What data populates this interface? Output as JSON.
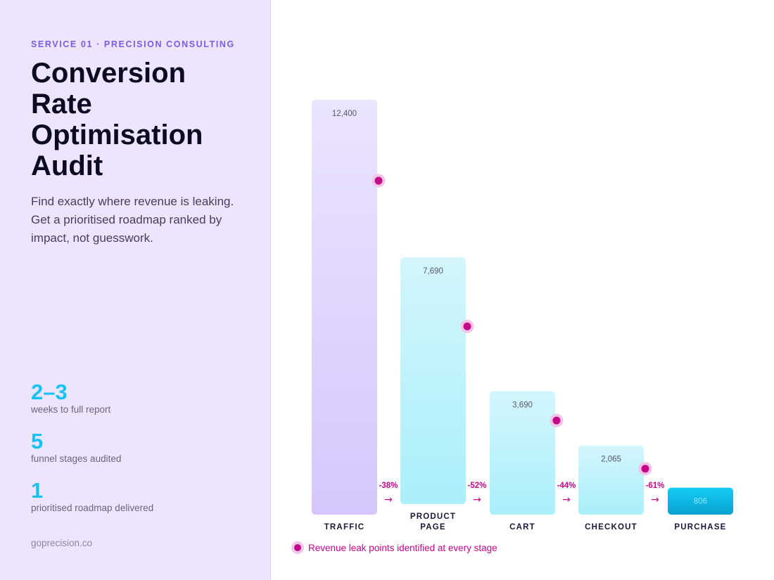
{
  "sidebar": {
    "eyebrow": "SERVICE 01 · PRECISION CONSULTING",
    "headline": [
      "Conversion",
      "Rate",
      "Optimisation",
      "Audit"
    ],
    "lede": "Find exactly where revenue is leaking. Get a prioritised roadmap ranked by impact, not guesswork.",
    "stats": [
      {
        "value": "2–3",
        "label": "weeks to full report"
      },
      {
        "value": "5",
        "label": "funnel stages audited"
      },
      {
        "value": "1",
        "label": "prioritised roadmap delivered"
      }
    ],
    "footer": "goprecision.co"
  },
  "legend": {
    "text": "Revenue leak points identified at every stage"
  },
  "colors": {
    "accent_purple": "#7b5ce6",
    "stat_cyan": "#18c3f2",
    "leak_magenta": "#c3068a",
    "bar_lavender": "#d8cbfd",
    "bar_cyan_light": "#b2f1fb",
    "bar_cyan_dark": "#0aa3d3"
  },
  "chart_data": {
    "type": "bar",
    "categories": [
      [
        "TRAFFIC"
      ],
      [
        "PRODUCT",
        "PAGE"
      ],
      [
        "CART"
      ],
      [
        "CHECKOUT"
      ],
      [
        "PURCHASE"
      ]
    ],
    "values": [
      12400,
      7690,
      3690,
      2065,
      806
    ],
    "value_labels": [
      "12,400",
      "7,690",
      "3,690",
      "2,065",
      "806"
    ],
    "drops": [
      "-38%",
      "-52%",
      "-44%",
      "-61%"
    ],
    "drop_arrow": "→",
    "ylim": [
      0,
      12400
    ],
    "grid": false
  }
}
